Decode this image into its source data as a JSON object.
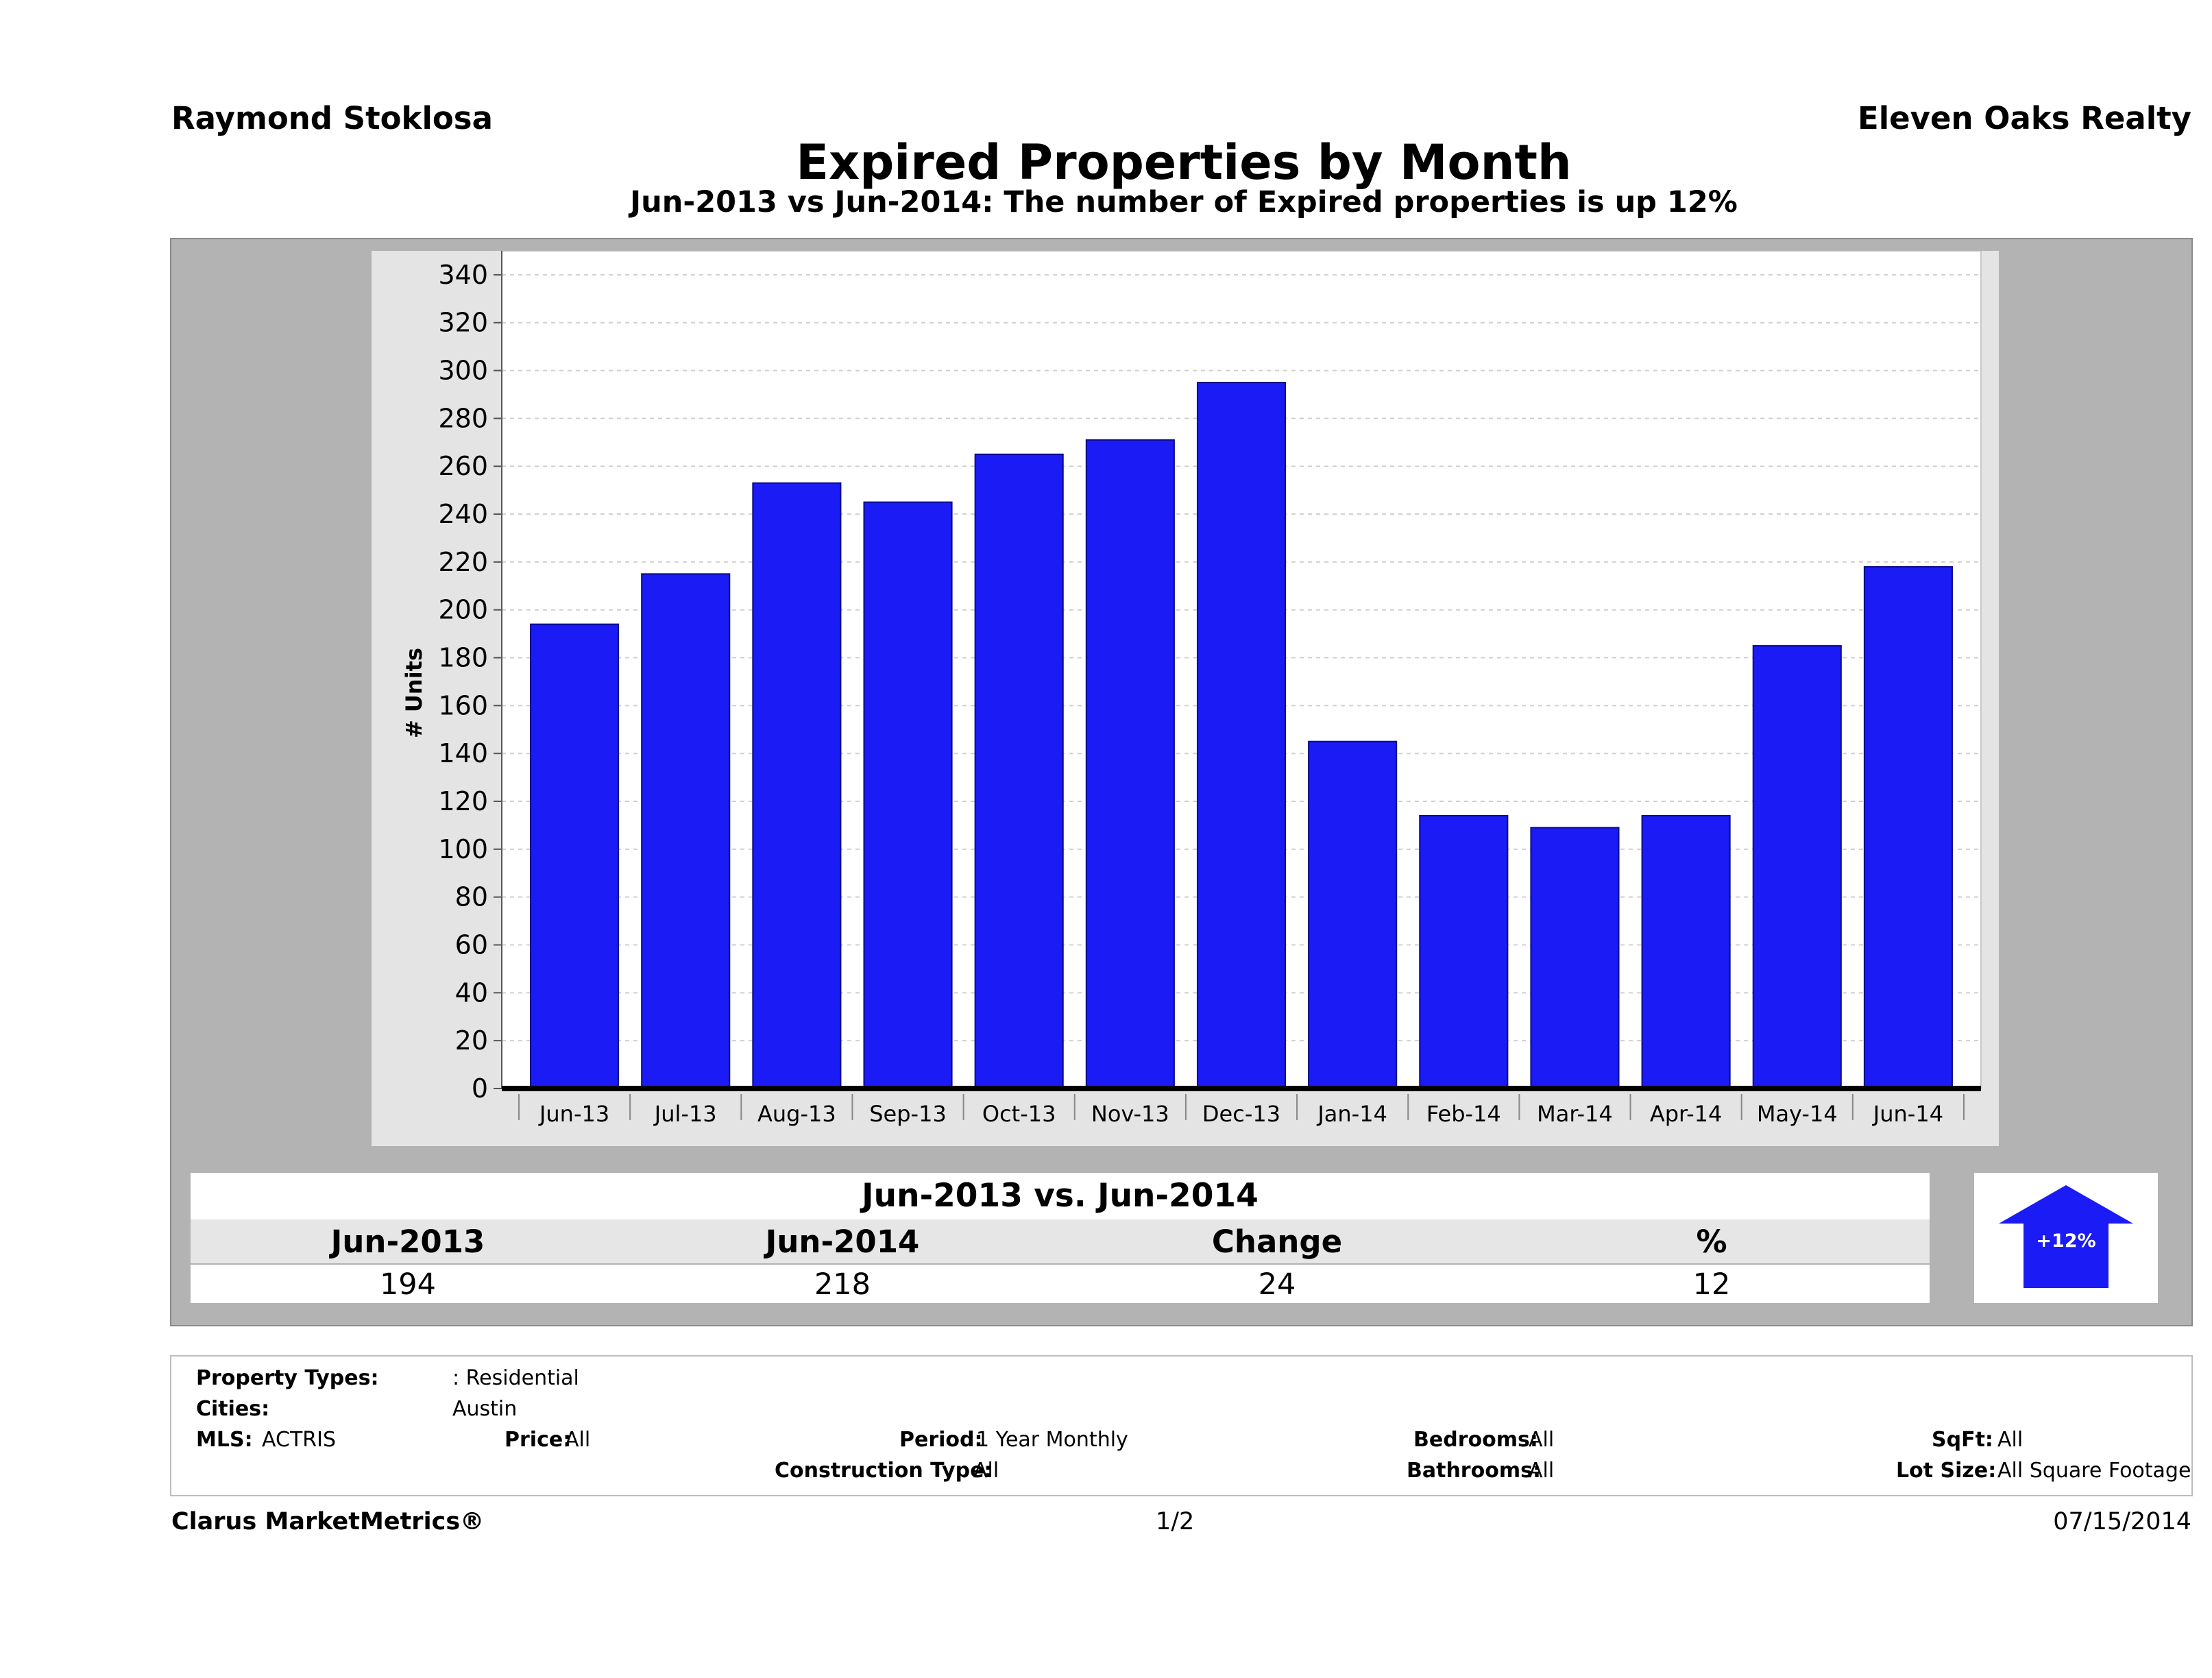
{
  "header": {
    "agent_name": "Raymond Stoklosa",
    "brokerage": "Eleven Oaks Realty",
    "title": "Expired Properties by Month",
    "subtitle": "Jun-2013 vs Jun-2014: The number of Expired  properties is up 12%"
  },
  "chart_data": {
    "type": "bar",
    "categories": [
      "Jun-13",
      "Jul-13",
      "Aug-13",
      "Sep-13",
      "Oct-13",
      "Nov-13",
      "Dec-13",
      "Jan-14",
      "Feb-14",
      "Mar-14",
      "Apr-14",
      "May-14",
      "Jun-14"
    ],
    "values": [
      194,
      215,
      253,
      245,
      265,
      271,
      295,
      145,
      114,
      109,
      114,
      185,
      218
    ],
    "ylabel": "# Units",
    "ylim": [
      0,
      350
    ],
    "yticks": [
      0,
      20,
      40,
      60,
      80,
      100,
      120,
      140,
      160,
      180,
      200,
      220,
      240,
      260,
      280,
      300,
      320,
      340
    ],
    "grid": true,
    "bar_color": "#1b1bf5"
  },
  "summary": {
    "heading": "Jun-2013 vs. Jun-2014",
    "col1_label": "Jun-2013",
    "col2_label": "Jun-2014",
    "col3_label": "Change",
    "col4_label": "%",
    "col1_value": "194",
    "col2_value": "218",
    "col3_value": "24",
    "col4_value": "12",
    "arrow_label": "+12%",
    "arrow_color": "#1b1bf5"
  },
  "filters": {
    "property_types_label": "Property Types:",
    "property_types_value": ": Residential",
    "cities_label": "Cities:",
    "cities_value": "Austin",
    "mls_label": "MLS:",
    "mls_value": "ACTRIS",
    "price_label": "Price:",
    "price_value": "All",
    "period_label": "Period:",
    "period_value": "1 Year Monthly",
    "construction_label": "Construction Type:",
    "construction_value": "All",
    "bedrooms_label": "Bedrooms:",
    "bedrooms_value": "All",
    "bathrooms_label": "Bathrooms:",
    "bathrooms_value": "All",
    "sqft_label": "SqFt:",
    "sqft_value": "All",
    "lotsize_label": "Lot Size:",
    "lotsize_value": "All Square Footage"
  },
  "footer": {
    "brand": "Clarus MarketMetrics®",
    "page": "1/2",
    "date": "07/15/2014"
  }
}
